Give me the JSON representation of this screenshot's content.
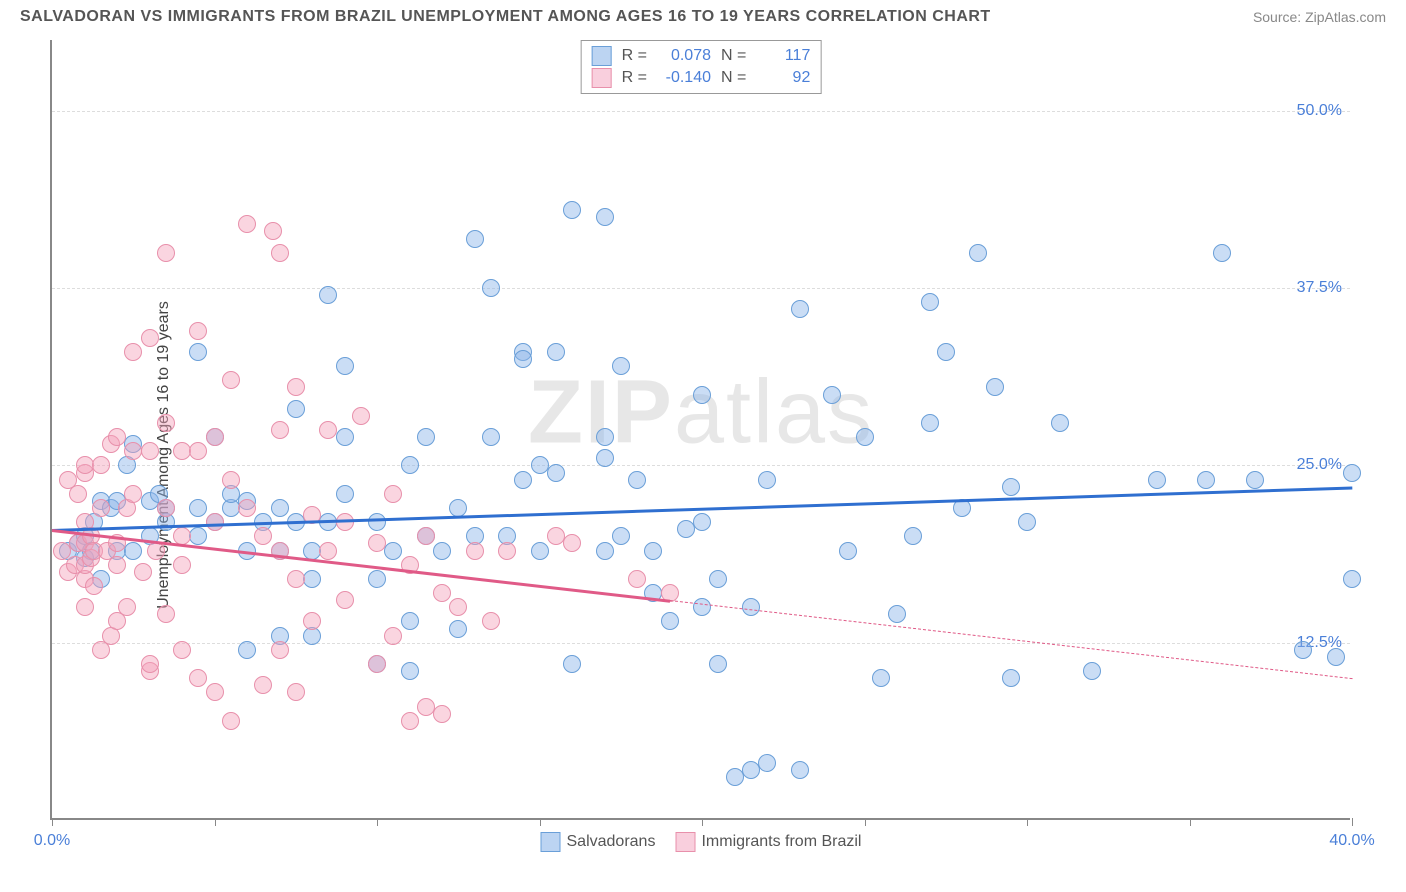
{
  "title": "SALVADORAN VS IMMIGRANTS FROM BRAZIL UNEMPLOYMENT AMONG AGES 16 TO 19 YEARS CORRELATION CHART",
  "source": "Source: ZipAtlas.com",
  "ylabel": "Unemployment Among Ages 16 to 19 years",
  "watermark_a": "ZIP",
  "watermark_b": "atlas",
  "chart": {
    "type": "scatter",
    "xlim": [
      0,
      40
    ],
    "ylim": [
      0,
      55
    ],
    "xticks": [
      0,
      5,
      10,
      15,
      20,
      25,
      30,
      35,
      40
    ],
    "xtick_labels": {
      "0": "0.0%",
      "40": "40.0%"
    },
    "yticks": [
      12.5,
      25.0,
      37.5,
      50.0
    ],
    "ytick_labels": [
      "12.5%",
      "25.0%",
      "37.5%",
      "50.0%"
    ],
    "grid_color": "#dddddd",
    "background_color": "#ffffff",
    "axis_color": "#888888",
    "marker_radius": 9,
    "series": [
      {
        "name": "Salvadorans",
        "color_fill": "rgba(137,179,232,0.45)",
        "color_stroke": "#6a9fd8",
        "legend_swatch_fill": "#bcd4f2",
        "legend_swatch_border": "#6a9fd8",
        "trend": {
          "x1": 0,
          "y1": 20.5,
          "x2": 40,
          "y2": 23.5,
          "color": "#2f6fd0",
          "width": 3,
          "dash_after_x": null
        },
        "stats": {
          "R": "0.078",
          "N": "117"
        },
        "points": [
          [
            0.5,
            19
          ],
          [
            0.8,
            19.5
          ],
          [
            1,
            18.5
          ],
          [
            1,
            20
          ],
          [
            1.2,
            19
          ],
          [
            1.3,
            21
          ],
          [
            1.5,
            17
          ],
          [
            1.5,
            22.5
          ],
          [
            1.8,
            22
          ],
          [
            2,
            19
          ],
          [
            2,
            22.5
          ],
          [
            2.3,
            25
          ],
          [
            2.5,
            19
          ],
          [
            2.5,
            26.5
          ],
          [
            3,
            20
          ],
          [
            3,
            22.5
          ],
          [
            3.3,
            23
          ],
          [
            3.5,
            21
          ],
          [
            3.5,
            22
          ],
          [
            4.5,
            22
          ],
          [
            4.5,
            20
          ],
          [
            4.5,
            33
          ],
          [
            5,
            21
          ],
          [
            5,
            27
          ],
          [
            5.5,
            22
          ],
          [
            5.5,
            23
          ],
          [
            6,
            19
          ],
          [
            6,
            12
          ],
          [
            6,
            22.5
          ],
          [
            6.5,
            21
          ],
          [
            7,
            19
          ],
          [
            7,
            22
          ],
          [
            7,
            13
          ],
          [
            7.5,
            29
          ],
          [
            7.5,
            21
          ],
          [
            8,
            17
          ],
          [
            8,
            19
          ],
          [
            8,
            13
          ],
          [
            8.5,
            21
          ],
          [
            8.5,
            37
          ],
          [
            9,
            23
          ],
          [
            9,
            27
          ],
          [
            9,
            32
          ],
          [
            10,
            17
          ],
          [
            10,
            21
          ],
          [
            10,
            11
          ],
          [
            10.5,
            19
          ],
          [
            11,
            25
          ],
          [
            11,
            10.5
          ],
          [
            11,
            14
          ],
          [
            11.5,
            27
          ],
          [
            11.5,
            20
          ],
          [
            12,
            19
          ],
          [
            12.5,
            22
          ],
          [
            12.5,
            13.5
          ],
          [
            13,
            20
          ],
          [
            13,
            41
          ],
          [
            13.5,
            37.5
          ],
          [
            13.5,
            27
          ],
          [
            14,
            20
          ],
          [
            14.5,
            33
          ],
          [
            14.5,
            32.5
          ],
          [
            14.5,
            24
          ],
          [
            15,
            19
          ],
          [
            15,
            25
          ],
          [
            15.5,
            24.5
          ],
          [
            15.5,
            33
          ],
          [
            16,
            11
          ],
          [
            16,
            43
          ],
          [
            17,
            42.5
          ],
          [
            17,
            25.5
          ],
          [
            17,
            19
          ],
          [
            17,
            27
          ],
          [
            17.5,
            20
          ],
          [
            17.5,
            32
          ],
          [
            18,
            24
          ],
          [
            18.5,
            19
          ],
          [
            18.5,
            16
          ],
          [
            19,
            14
          ],
          [
            19.5,
            20.5
          ],
          [
            20,
            21
          ],
          [
            20,
            15
          ],
          [
            20,
            30
          ],
          [
            20.5,
            17
          ],
          [
            20.5,
            11
          ],
          [
            21,
            3
          ],
          [
            21.5,
            3.5
          ],
          [
            21.5,
            15
          ],
          [
            22,
            24
          ],
          [
            22,
            4
          ],
          [
            23,
            3.5
          ],
          [
            23,
            36
          ],
          [
            24,
            30
          ],
          [
            24.5,
            19
          ],
          [
            25,
            27
          ],
          [
            25.5,
            10
          ],
          [
            26,
            14.5
          ],
          [
            26.5,
            20
          ],
          [
            27,
            28
          ],
          [
            27,
            36.5
          ],
          [
            27.5,
            33
          ],
          [
            28,
            22
          ],
          [
            28.5,
            40
          ],
          [
            29,
            30.5
          ],
          [
            29.5,
            23.5
          ],
          [
            29.5,
            10
          ],
          [
            30,
            21
          ],
          [
            31,
            28
          ],
          [
            32,
            10.5
          ],
          [
            34,
            24
          ],
          [
            35.5,
            24
          ],
          [
            36,
            40
          ],
          [
            37,
            24
          ],
          [
            38.5,
            12
          ],
          [
            39.5,
            11.5
          ],
          [
            40,
            17
          ],
          [
            40,
            24.5
          ]
        ]
      },
      {
        "name": "Immigrants from Brazil",
        "color_fill": "rgba(244,162,187,0.45)",
        "color_stroke": "#e890ab",
        "legend_swatch_fill": "#f9cfdd",
        "legend_swatch_border": "#e890ab",
        "trend": {
          "x1": 0,
          "y1": 20.5,
          "x2": 40,
          "y2": 10,
          "color": "#e05a87",
          "width": 3,
          "dash_after_x": 19
        },
        "stats": {
          "R": "-0.140",
          "N": "92"
        },
        "points": [
          [
            0.3,
            19
          ],
          [
            0.5,
            17.5
          ],
          [
            0.5,
            24
          ],
          [
            0.7,
            18
          ],
          [
            0.8,
            23
          ],
          [
            0.8,
            19.5
          ],
          [
            1,
            15
          ],
          [
            1,
            17
          ],
          [
            1,
            18
          ],
          [
            1,
            19.5
          ],
          [
            1,
            21
          ],
          [
            1,
            24.5
          ],
          [
            1,
            25
          ],
          [
            1.2,
            18.5
          ],
          [
            1.2,
            20
          ],
          [
            1.3,
            16.5
          ],
          [
            1.3,
            19
          ],
          [
            1.5,
            12
          ],
          [
            1.5,
            22
          ],
          [
            1.5,
            25
          ],
          [
            1.7,
            19
          ],
          [
            1.8,
            13
          ],
          [
            1.8,
            26.5
          ],
          [
            2,
            18
          ],
          [
            2,
            19.5
          ],
          [
            2,
            27
          ],
          [
            2,
            14
          ],
          [
            2.3,
            15
          ],
          [
            2.3,
            22
          ],
          [
            2.5,
            26
          ],
          [
            2.5,
            23
          ],
          [
            2.5,
            33
          ],
          [
            2.8,
            17.5
          ],
          [
            3,
            10.5
          ],
          [
            3,
            11
          ],
          [
            3,
            26
          ],
          [
            3,
            34
          ],
          [
            3.2,
            19
          ],
          [
            3.5,
            14.5
          ],
          [
            3.5,
            22
          ],
          [
            3.5,
            28
          ],
          [
            3.5,
            40
          ],
          [
            4,
            12
          ],
          [
            4,
            18
          ],
          [
            4,
            20
          ],
          [
            4,
            26
          ],
          [
            4.5,
            34.5
          ],
          [
            4.5,
            26
          ],
          [
            4.5,
            10
          ],
          [
            5,
            9
          ],
          [
            5,
            21
          ],
          [
            5,
            27
          ],
          [
            5.5,
            7
          ],
          [
            5.5,
            24
          ],
          [
            5.5,
            31
          ],
          [
            6,
            22
          ],
          [
            6,
            42
          ],
          [
            6.5,
            20
          ],
          [
            6.5,
            9.5
          ],
          [
            6.8,
            41.5
          ],
          [
            7,
            12
          ],
          [
            7,
            19
          ],
          [
            7,
            27.5
          ],
          [
            7,
            40
          ],
          [
            7.5,
            9
          ],
          [
            7.5,
            17
          ],
          [
            7.5,
            30.5
          ],
          [
            8,
            14
          ],
          [
            8,
            21.5
          ],
          [
            8.5,
            19
          ],
          [
            8.5,
            27.5
          ],
          [
            9,
            15.5
          ],
          [
            9,
            21
          ],
          [
            9.5,
            28.5
          ],
          [
            10,
            11
          ],
          [
            10,
            19.5
          ],
          [
            10.5,
            13
          ],
          [
            10.5,
            23
          ],
          [
            11,
            7
          ],
          [
            11,
            18
          ],
          [
            11.5,
            8
          ],
          [
            11.5,
            20
          ],
          [
            12,
            16
          ],
          [
            12,
            7.5
          ],
          [
            12.5,
            15
          ],
          [
            13,
            19
          ],
          [
            13.5,
            14
          ],
          [
            14,
            19
          ],
          [
            15.5,
            20
          ],
          [
            16,
            19.5
          ],
          [
            18,
            17
          ],
          [
            19,
            16
          ]
        ]
      }
    ]
  },
  "legend": {
    "series1": "Salvadorans",
    "series2": "Immigrants from Brazil"
  },
  "statbox": {
    "r_label": "R =",
    "n_label": "N ="
  }
}
